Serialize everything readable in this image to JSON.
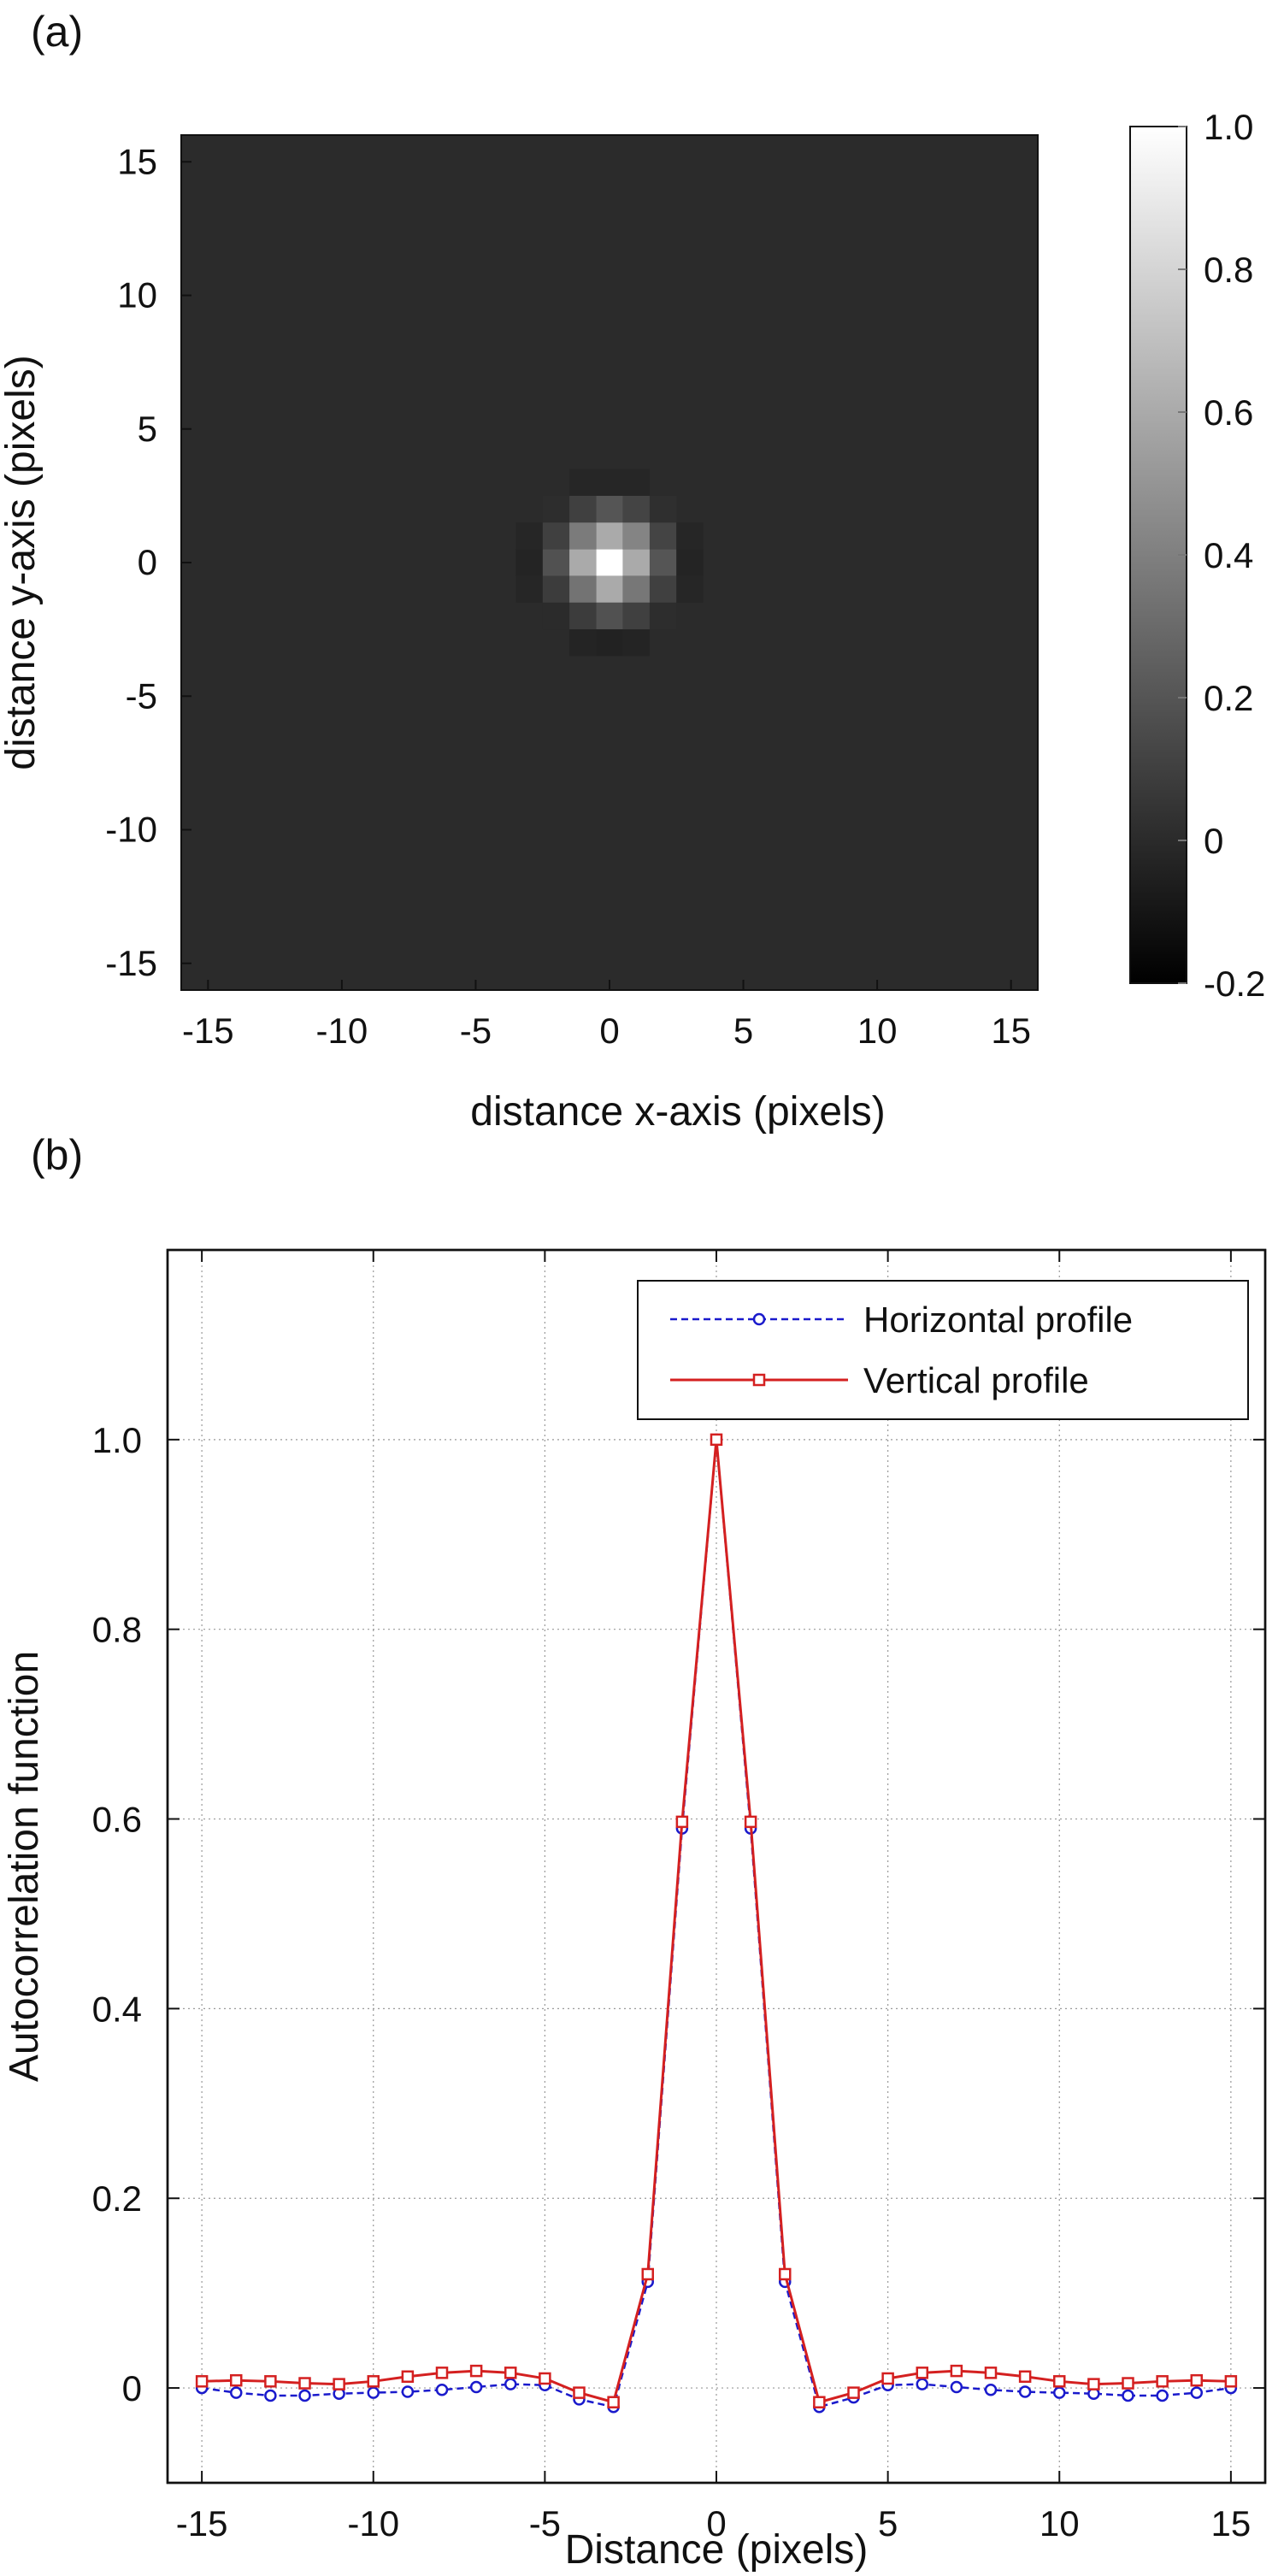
{
  "panels": {
    "a_label": "(a)",
    "b_label": "(b)"
  },
  "chart_data": [
    {
      "type": "heatmap",
      "xlabel": "distance x-axis (pixels)",
      "ylabel": "distance y-axis (pixels)",
      "xlim": [
        -16,
        16
      ],
      "ylim": [
        -16,
        16
      ],
      "xticks": [
        -15,
        -10,
        -5,
        0,
        5,
        10,
        15
      ],
      "yticks": [
        -15,
        -10,
        -5,
        0,
        5,
        10,
        15
      ],
      "colormap": "gray",
      "colorbar": {
        "range": [
          -0.2,
          1.0
        ],
        "ticks": [
          -0.2,
          0,
          0.2,
          0.4,
          0.6,
          0.8,
          1.0
        ],
        "tick_labels": [
          "-0.2",
          "0",
          "0.2",
          "0.4",
          "0.6",
          "0.8",
          "1.0"
        ]
      },
      "background_value": 0.0,
      "peak_cells": [
        {
          "x": 0,
          "y": 0,
          "value": 1.0
        },
        {
          "x": 1,
          "y": 0,
          "value": 0.6
        },
        {
          "x": -1,
          "y": 0,
          "value": 0.6
        },
        {
          "x": 0,
          "y": 1,
          "value": 0.6
        },
        {
          "x": 0,
          "y": -1,
          "value": 0.6
        },
        {
          "x": 1,
          "y": 1,
          "value": 0.42
        },
        {
          "x": -1,
          "y": 1,
          "value": 0.38
        },
        {
          "x": 1,
          "y": -1,
          "value": 0.36
        },
        {
          "x": -1,
          "y": -1,
          "value": 0.34
        },
        {
          "x": 2,
          "y": 0,
          "value": 0.2
        },
        {
          "x": -2,
          "y": 0,
          "value": 0.18
        },
        {
          "x": 0,
          "y": 2,
          "value": 0.2
        },
        {
          "x": 0,
          "y": -2,
          "value": 0.18
        },
        {
          "x": 1,
          "y": 2,
          "value": 0.12
        },
        {
          "x": -1,
          "y": 2,
          "value": 0.1
        },
        {
          "x": 1,
          "y": -2,
          "value": 0.1
        },
        {
          "x": -1,
          "y": -2,
          "value": 0.08
        },
        {
          "x": 2,
          "y": 1,
          "value": 0.12
        },
        {
          "x": 2,
          "y": -1,
          "value": 0.1
        },
        {
          "x": -2,
          "y": 1,
          "value": 0.1
        },
        {
          "x": -2,
          "y": -1,
          "value": 0.08
        },
        {
          "x": 2,
          "y": 2,
          "value": 0.02
        },
        {
          "x": -2,
          "y": 2,
          "value": 0.01
        },
        {
          "x": 2,
          "y": -2,
          "value": 0.01
        },
        {
          "x": -2,
          "y": -2,
          "value": 0.0
        },
        {
          "x": 3,
          "y": 0,
          "value": -0.03
        },
        {
          "x": -3,
          "y": 0,
          "value": -0.03
        },
        {
          "x": 0,
          "y": 3,
          "value": -0.02
        },
        {
          "x": 0,
          "y": -3,
          "value": -0.04
        },
        {
          "x": 3,
          "y": 1,
          "value": -0.02
        },
        {
          "x": 3,
          "y": -1,
          "value": -0.02
        },
        {
          "x": -3,
          "y": 1,
          "value": -0.02
        },
        {
          "x": -3,
          "y": -1,
          "value": -0.02
        },
        {
          "x": 1,
          "y": 3,
          "value": -0.02
        },
        {
          "x": -1,
          "y": 3,
          "value": -0.02
        },
        {
          "x": 1,
          "y": -3,
          "value": -0.03
        },
        {
          "x": -1,
          "y": -3,
          "value": -0.03
        }
      ]
    },
    {
      "type": "line",
      "xlabel": "Distance (pixels)",
      "ylabel": "Autocorrelation function",
      "xlim": [
        -16,
        16
      ],
      "ylim": [
        -0.1,
        1.2
      ],
      "xticks": [
        -15,
        -10,
        -5,
        0,
        5,
        10,
        15
      ],
      "yticks": [
        0,
        0.2,
        0.4,
        0.6,
        0.8,
        1.0
      ],
      "ytick_labels": [
        "0",
        "0.2",
        "0.4",
        "0.6",
        "0.8",
        "1.0"
      ],
      "grid": true,
      "legend_position": "top-right",
      "x": [
        -15,
        -14,
        -13,
        -12,
        -11,
        -10,
        -9,
        -8,
        -7,
        -6,
        -5,
        -4,
        -3,
        -2,
        -1,
        0,
        1,
        2,
        3,
        4,
        5,
        6,
        7,
        8,
        9,
        10,
        11,
        12,
        13,
        14,
        15
      ],
      "series": [
        {
          "name": "Horizontal profile",
          "color": "#1a1acc",
          "style": "dashed",
          "marker": "circle",
          "values": [
            0.0,
            -0.005,
            -0.008,
            -0.008,
            -0.006,
            -0.005,
            -0.004,
            -0.002,
            0.001,
            0.004,
            0.003,
            -0.012,
            -0.02,
            0.112,
            0.59,
            1.0,
            0.59,
            0.112,
            -0.02,
            -0.01,
            0.003,
            0.004,
            0.001,
            -0.002,
            -0.004,
            -0.005,
            -0.006,
            -0.008,
            -0.008,
            -0.005,
            0.0
          ]
        },
        {
          "name": "Vertical profile",
          "color": "#d42020",
          "style": "solid",
          "marker": "square",
          "values": [
            0.007,
            0.008,
            0.007,
            0.005,
            0.004,
            0.007,
            0.012,
            0.016,
            0.018,
            0.016,
            0.01,
            -0.005,
            -0.015,
            0.12,
            0.597,
            1.0,
            0.597,
            0.12,
            -0.015,
            -0.005,
            0.01,
            0.016,
            0.018,
            0.016,
            0.012,
            0.007,
            0.004,
            0.005,
            0.007,
            0.008,
            0.007
          ]
        }
      ]
    }
  ]
}
